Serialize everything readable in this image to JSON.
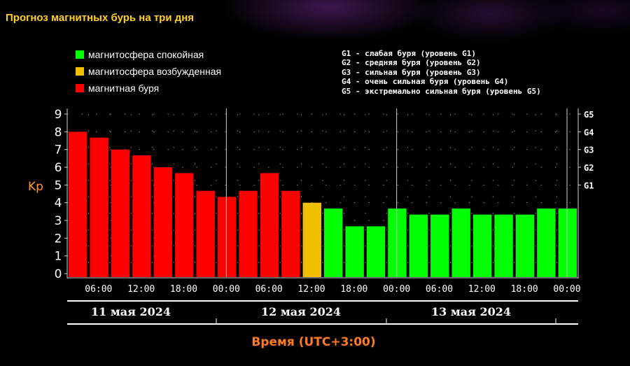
{
  "page": {
    "title": "Прогноз магнитных бурь на три дня"
  },
  "legend": [
    {
      "label": "магнитосфера спокойная",
      "color": "#00ff00"
    },
    {
      "label": "магнитосфера возбужденная",
      "color": "#f0c000"
    },
    {
      "label": "магнитная буря",
      "color": "#ff0000"
    }
  ],
  "storm_levels": [
    "G1 - слабая буря (уровень G1)",
    "G2 - средняя буря (уровень G2)",
    "G3 - сильная буря (уровень G3)",
    "G4 - очень сильная буря (уровень G4)",
    "G5 - экстремально сильная буря (уровень G5)"
  ],
  "chart_data": {
    "type": "bar",
    "ylabel": "Kp",
    "xlabel": "Время (UTC+3:00)",
    "ylim": [
      0,
      9
    ],
    "yticks": [
      "0",
      "1",
      "2",
      "3",
      "4",
      "5",
      "6",
      "7",
      "8",
      "9"
    ],
    "g_ticks": [
      {
        "label": "G1",
        "value": 5
      },
      {
        "label": "G2",
        "value": 6
      },
      {
        "label": "G3",
        "value": 7
      },
      {
        "label": "G4",
        "value": 8
      },
      {
        "label": "G5",
        "value": 9
      }
    ],
    "xticks": [
      "06:00",
      "12:00",
      "18:00",
      "00:00",
      "06:00",
      "12:00",
      "18:00",
      "00:00",
      "06:00",
      "12:00",
      "18:00",
      "00:00"
    ],
    "days": [
      "11 мая 2024",
      "12 мая 2024",
      "13 мая 2024"
    ],
    "grid": true,
    "values": [
      8,
      7.67,
      7,
      6.67,
      6,
      5.67,
      4.67,
      4.33,
      4.67,
      5.67,
      4.67,
      4,
      3.67,
      2.67,
      2.67,
      3.67,
      3.33,
      3.33,
      3.67,
      3.33,
      3.33,
      3.33,
      3.67,
      3.67
    ],
    "colors": [
      "#ff0000",
      "#ff0000",
      "#ff0000",
      "#ff0000",
      "#ff0000",
      "#ff0000",
      "#ff0000",
      "#ff0000",
      "#ff0000",
      "#ff0000",
      "#ff0000",
      "#f0c000",
      "#00ff00",
      "#00ff00",
      "#00ff00",
      "#00ff00",
      "#00ff00",
      "#00ff00",
      "#00ff00",
      "#00ff00",
      "#00ff00",
      "#00ff00",
      "#00ff00",
      "#00ff00"
    ]
  }
}
